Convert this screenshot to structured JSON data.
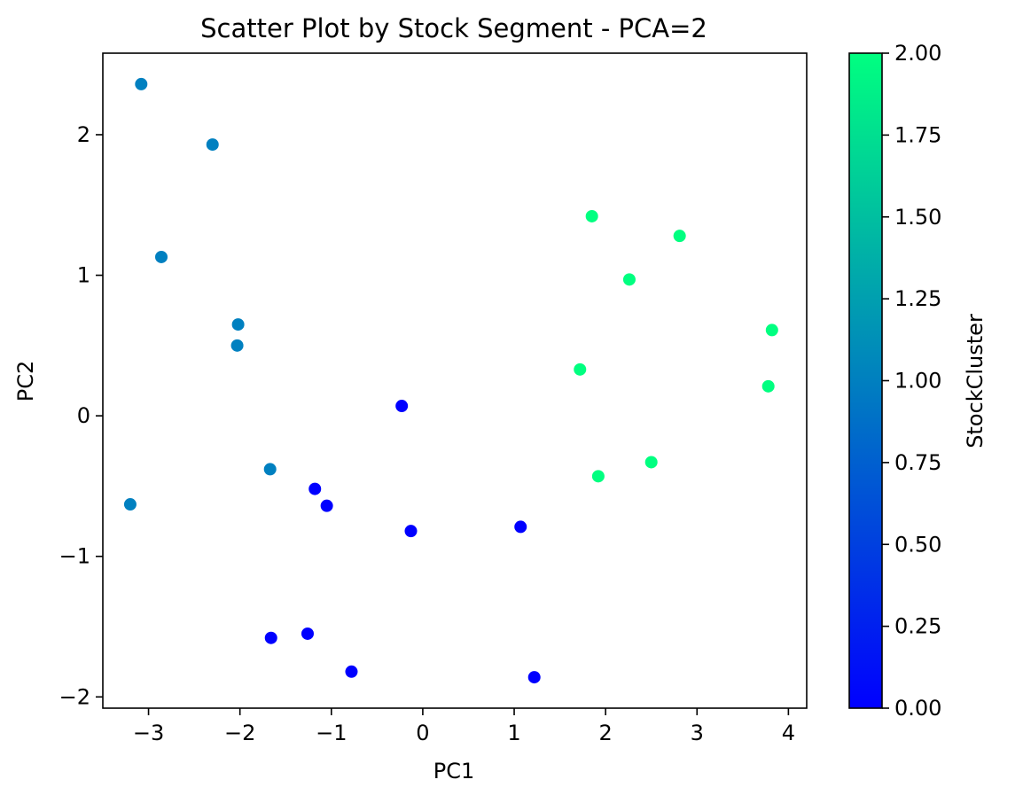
{
  "chart_data": {
    "type": "scatter",
    "title": "Scatter Plot by Stock Segment - PCA=2",
    "xlabel": "PC1",
    "ylabel": "PC2",
    "xlim": [
      -3.5,
      4.2
    ],
    "ylim": [
      -2.08,
      2.58
    ],
    "x_ticks": [
      -3,
      -2,
      -1,
      0,
      1,
      2,
      3,
      4
    ],
    "x_tick_labels": [
      "−3",
      "−2",
      "−1",
      "0",
      "1",
      "2",
      "3",
      "4"
    ],
    "y_ticks": [
      -2,
      -1,
      0,
      1,
      2
    ],
    "y_tick_labels": [
      "−2",
      "−1",
      "0",
      "1",
      "2"
    ],
    "grid": false,
    "colorbar": {
      "label": "StockCluster",
      "range": [
        0,
        2
      ],
      "ticks": [
        0,
        0.25,
        0.5,
        0.75,
        1.0,
        1.25,
        1.5,
        1.75,
        2.0
      ],
      "tick_labels": [
        "0.00",
        "0.25",
        "0.50",
        "0.75",
        "1.00",
        "1.25",
        "1.50",
        "1.75",
        "2.00"
      ],
      "colormap": [
        "#0000ff",
        "#00ff80"
      ]
    },
    "points": [
      {
        "x": -3.08,
        "y": 2.36,
        "c": 1
      },
      {
        "x": -2.3,
        "y": 1.93,
        "c": 1
      },
      {
        "x": -2.86,
        "y": 1.13,
        "c": 1
      },
      {
        "x": -2.02,
        "y": 0.65,
        "c": 1
      },
      {
        "x": -2.03,
        "y": 0.5,
        "c": 1
      },
      {
        "x": -1.67,
        "y": -0.38,
        "c": 1
      },
      {
        "x": -3.2,
        "y": -0.63,
        "c": 1
      },
      {
        "x": -0.23,
        "y": 0.07,
        "c": 0
      },
      {
        "x": -1.18,
        "y": -0.52,
        "c": 0
      },
      {
        "x": -1.05,
        "y": -0.64,
        "c": 0
      },
      {
        "x": -0.13,
        "y": -0.82,
        "c": 0
      },
      {
        "x": 1.07,
        "y": -0.79,
        "c": 0
      },
      {
        "x": -1.66,
        "y": -1.58,
        "c": 0
      },
      {
        "x": -1.26,
        "y": -1.55,
        "c": 0
      },
      {
        "x": -0.78,
        "y": -1.82,
        "c": 0
      },
      {
        "x": 1.22,
        "y": -1.86,
        "c": 0
      },
      {
        "x": 1.85,
        "y": 1.42,
        "c": 2
      },
      {
        "x": 2.81,
        "y": 1.28,
        "c": 2
      },
      {
        "x": 2.26,
        "y": 0.97,
        "c": 2
      },
      {
        "x": 3.82,
        "y": 0.61,
        "c": 2
      },
      {
        "x": 1.72,
        "y": 0.33,
        "c": 2
      },
      {
        "x": 3.78,
        "y": 0.21,
        "c": 2
      },
      {
        "x": 2.5,
        "y": -0.33,
        "c": 2
      },
      {
        "x": 1.92,
        "y": -0.43,
        "c": 2
      }
    ]
  }
}
